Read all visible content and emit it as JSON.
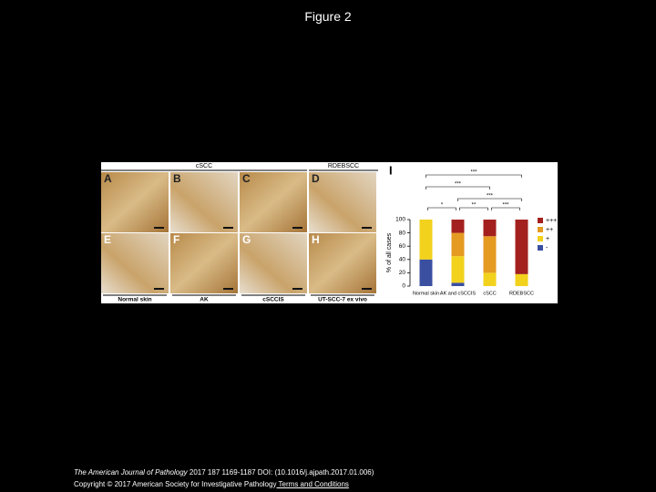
{
  "header": {
    "title": "Figure 2"
  },
  "figure": {
    "column_headers": [
      "cSCC",
      "RDEBSCC"
    ],
    "panels": [
      "A",
      "B",
      "C",
      "D",
      "E",
      "F",
      "G",
      "H"
    ],
    "row_labels": [
      "Normal skin",
      "AK",
      "cSCCIS",
      "UT-SCC-7 ex vivo"
    ],
    "chart_panel": "I"
  },
  "chart_data": {
    "type": "stacked_bar",
    "y_label": "% of all cases",
    "categories": [
      "Normal skin",
      "AK and cSCCIS",
      "cSCC",
      "RDEBSCC"
    ],
    "series": [
      {
        "name": "-",
        "color": "#3b4fa0",
        "values": [
          40,
          5,
          0,
          0
        ]
      },
      {
        "name": "+",
        "color": "#f2d21c",
        "values": [
          60,
          40,
          20,
          18
        ]
      },
      {
        "name": "++",
        "color": "#e59a22",
        "values": [
          0,
          35,
          55,
          0
        ]
      },
      {
        "name": "+++",
        "color": "#a3201f",
        "values": [
          0,
          20,
          25,
          82
        ]
      }
    ],
    "ylim": [
      0,
      100
    ],
    "yticks": [
      0,
      20,
      40,
      60,
      80,
      100
    ],
    "annotations": [
      "***",
      "***",
      "***",
      "*",
      "**",
      "***"
    ]
  },
  "footer": {
    "journal": "The American Journal of Pathology",
    "citation": " 2017 187 1169-1187 DOI: (10.1016/j.ajpath.2017.01.006)",
    "copyright": "Copyright © 2017 American Society for Investigative Pathology",
    "link": " Terms and Conditions"
  }
}
